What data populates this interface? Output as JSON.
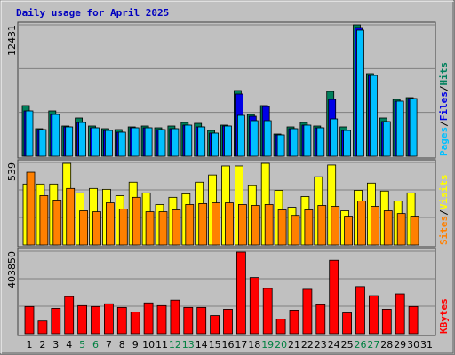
{
  "chart_data": {
    "type": "bar",
    "title": "Daily usage for April 2025",
    "categories": [
      "1",
      "2",
      "3",
      "4",
      "5",
      "6",
      "7",
      "8",
      "9",
      "10",
      "11",
      "12",
      "13",
      "14",
      "15",
      "16",
      "17",
      "18",
      "19",
      "20",
      "21",
      "22",
      "23",
      "24",
      "25",
      "26",
      "27",
      "28",
      "29",
      "30",
      "31"
    ],
    "category_colors": [
      "#000000",
      "#000000",
      "#000000",
      "#000000",
      "#008040",
      "#008040",
      "#000000",
      "#000000",
      "#000000",
      "#000000",
      "#000000",
      "#008040",
      "#008040",
      "#000000",
      "#000000",
      "#000000",
      "#000000",
      "#000000",
      "#008040",
      "#008040",
      "#000000",
      "#000000",
      "#000000",
      "#000000",
      "#000000",
      "#008040",
      "#008040",
      "#000000",
      "#000000",
      "#000000",
      "#000000"
    ],
    "legend_separator": "/",
    "panels": [
      {
        "ylim": [
          0,
          12431
        ],
        "yticks": [
          12431
        ],
        "gridlines": [
          4144,
          8287
        ],
        "series": [
          {
            "name": "Hits",
            "color": "#00805c",
            "values": [
              4788,
              2604,
              4284,
              2856,
              3612,
              2856,
              2604,
              2520,
              2772,
              2856,
              2688,
              2856,
              3192,
              3108,
              2436,
              2940,
              6216,
              3948,
              4788,
              2100,
              2772,
              3192,
              2856,
              6132,
              2772,
              12431,
              7812,
              3612,
              5376,
              5544,
              null
            ]
          },
          {
            "name": "Files",
            "color": "#0000e6",
            "values": [
              4284,
              2520,
              3948,
              2772,
              3192,
              2688,
              2436,
              2268,
              2688,
              2688,
              2520,
              2604,
              2940,
              2772,
              2184,
              2856,
              5880,
              3780,
              4704,
              2016,
              2604,
              2940,
              2688,
              5376,
              2436,
              12180,
              7644,
              3276,
              5208,
              5460,
              null
            ]
          },
          {
            "name": "Pages",
            "color": "#00c0ff",
            "values": [
              4284,
              2520,
              3948,
              2772,
              3192,
              2688,
              2436,
              2268,
              2688,
              2688,
              2520,
              2604,
              2940,
              2772,
              2184,
              2856,
              3864,
              3360,
              3360,
              2016,
              2604,
              2940,
              2688,
              3528,
              2436,
              11928,
              7644,
              3276,
              5208,
              5460,
              null
            ]
          }
        ]
      },
      {
        "ylim": [
          0,
          539
        ],
        "yticks": [
          539
        ],
        "gridlines": [
          180,
          359
        ],
        "series": [
          {
            "name": "Visits",
            "color": "#ffff00",
            "values": [
              398,
              398,
              398,
              533,
              340,
              369,
              363,
              322,
              410,
              340,
              264,
              311,
              334,
              410,
              457,
              516,
              516,
              387,
              533,
              357,
              246,
              316,
              445,
              522,
              223,
              357,
              404,
              352,
              287,
              340,
              null
            ]
          },
          {
            "name": "Sites",
            "color": "#ff8000",
            "values": [
              475,
              322,
              293,
              369,
              223,
              217,
              275,
              234,
              311,
              217,
              217,
              229,
              264,
              270,
              275,
              275,
              264,
              258,
              264,
              229,
              193,
              229,
              258,
              252,
              188,
              287,
              252,
              223,
              205,
              188,
              null
            ]
          }
        ]
      },
      {
        "ylim": [
          0,
          403850
        ],
        "yticks": [
          403850
        ],
        "gridlines": [
          134617,
          269233
        ],
        "series": [
          {
            "name": "KBytes",
            "color": "#ff0000",
            "values": [
              133140,
              62132,
              124264,
              181958,
              137578,
              133140,
              146454,
              128702,
              106512,
              150892,
              137578,
              164206,
              128702,
              128702,
              88760,
              119826,
              399420,
              275156,
              221900,
              71008,
              115388,
              217462,
              142016,
              359478,
              102074,
              230776,
              186396,
              119826,
              195272,
              133140,
              null
            ]
          }
        ]
      }
    ]
  }
}
